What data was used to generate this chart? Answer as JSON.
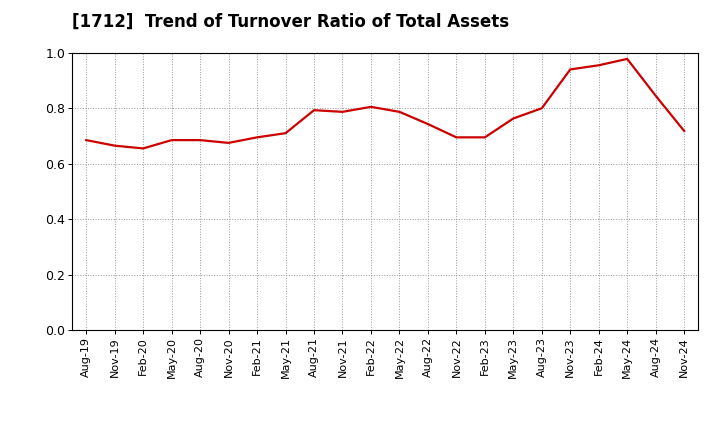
{
  "title": "[1712]  Trend of Turnover Ratio of Total Assets",
  "x_labels": [
    "Aug-19",
    "Nov-19",
    "Feb-20",
    "May-20",
    "Aug-20",
    "Nov-20",
    "Feb-21",
    "May-21",
    "Aug-21",
    "Nov-21",
    "Feb-22",
    "May-22",
    "Aug-22",
    "Nov-22",
    "Feb-23",
    "May-23",
    "Aug-23",
    "Nov-23",
    "Feb-24",
    "May-24",
    "Aug-24",
    "Nov-24"
  ],
  "y_values": [
    0.685,
    0.665,
    0.655,
    0.685,
    0.685,
    0.675,
    0.695,
    0.71,
    0.793,
    0.787,
    0.805,
    0.787,
    0.743,
    0.695,
    0.695,
    0.763,
    0.8,
    0.94,
    0.955,
    0.978,
    0.845,
    0.718
  ],
  "ylim": [
    0.0,
    1.0
  ],
  "yticks": [
    0.0,
    0.2,
    0.4,
    0.6,
    0.8,
    1.0
  ],
  "line_color": "#cc0000",
  "line_width": 1.6,
  "grid_color": "#999999",
  "background_color": "#ffffff",
  "title_fontsize": 12,
  "tick_fontsize": 8
}
